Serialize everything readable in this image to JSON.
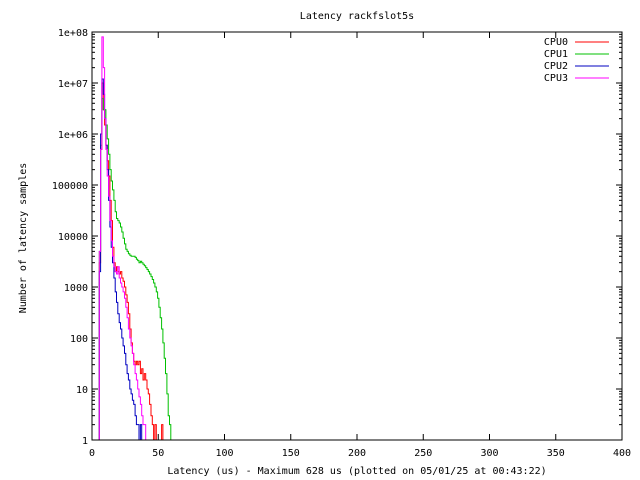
{
  "chart_data": {
    "type": "line",
    "title": "Latency rackfslot5s",
    "xlabel": "Latency (us) - Maximum 628 us (plotted on 05/01/25 at 00:43:22)",
    "ylabel": "Number of latency samples",
    "xlim": [
      0,
      400
    ],
    "ylim": [
      1,
      100000000
    ],
    "yscale": "log",
    "grid": false,
    "legend_position": "top-right",
    "x_ticks": [
      0,
      50,
      100,
      150,
      200,
      250,
      300,
      350,
      400
    ],
    "y_ticks": [
      {
        "value": 1,
        "label": "1"
      },
      {
        "value": 10,
        "label": "10"
      },
      {
        "value": 100,
        "label": "100"
      },
      {
        "value": 1000,
        "label": "1000"
      },
      {
        "value": 10000,
        "label": "10000"
      },
      {
        "value": 100000,
        "label": "100000"
      },
      {
        "value": 1000000,
        "label": "1e+06"
      },
      {
        "value": 10000000,
        "label": "1e+07"
      },
      {
        "value": 100000000,
        "label": "1e+08"
      }
    ],
    "series": [
      {
        "name": "CPU0",
        "color": "#ff0000",
        "points": [
          [
            5,
            1
          ],
          [
            6,
            3000
          ],
          [
            7,
            500000
          ],
          [
            8,
            10000000
          ],
          [
            9,
            3000000
          ],
          [
            10,
            1500000
          ],
          [
            11,
            600000
          ],
          [
            12,
            300000
          ],
          [
            13,
            150000
          ],
          [
            14,
            50000
          ],
          [
            15,
            20000
          ],
          [
            16,
            6000
          ],
          [
            17,
            3000
          ],
          [
            18,
            2000
          ],
          [
            19,
            2500
          ],
          [
            20,
            2000
          ],
          [
            21,
            1800
          ],
          [
            22,
            2000
          ],
          [
            23,
            1500
          ],
          [
            24,
            1300
          ],
          [
            25,
            1000
          ],
          [
            26,
            700
          ],
          [
            27,
            500
          ],
          [
            28,
            300
          ],
          [
            29,
            150
          ],
          [
            30,
            80
          ],
          [
            31,
            50
          ],
          [
            32,
            35
          ],
          [
            33,
            30
          ],
          [
            34,
            35
          ],
          [
            35,
            30
          ],
          [
            36,
            35
          ],
          [
            37,
            20
          ],
          [
            38,
            25
          ],
          [
            39,
            15
          ],
          [
            40,
            20
          ],
          [
            41,
            15
          ],
          [
            42,
            10
          ],
          [
            43,
            8
          ],
          [
            44,
            5
          ],
          [
            45,
            3
          ],
          [
            46,
            2
          ],
          [
            47,
            1
          ],
          [
            48,
            2
          ],
          [
            49,
            1
          ],
          [
            50,
            1
          ],
          [
            51,
            1
          ],
          [
            52,
            1
          ],
          [
            53,
            2
          ],
          [
            54,
            1
          ],
          [
            55,
            1
          ],
          [
            56,
            1
          ],
          [
            57,
            1
          ],
          [
            58,
            1
          ],
          [
            59,
            1
          ],
          [
            60,
            1
          ],
          [
            61,
            1
          ],
          [
            62,
            1
          ],
          [
            63,
            1
          ],
          [
            64,
            1
          ],
          [
            65,
            1
          ],
          [
            66,
            1
          ],
          [
            67,
            1
          ]
        ]
      },
      {
        "name": "CPU1",
        "color": "#00c000",
        "points": [
          [
            5,
            1
          ],
          [
            6,
            5000
          ],
          [
            7,
            600000
          ],
          [
            8,
            5000000
          ],
          [
            9,
            3000000
          ],
          [
            10,
            3000000
          ],
          [
            11,
            1500000
          ],
          [
            12,
            800000
          ],
          [
            13,
            400000
          ],
          [
            14,
            200000
          ],
          [
            15,
            120000
          ],
          [
            16,
            80000
          ],
          [
            17,
            50000
          ],
          [
            18,
            30000
          ],
          [
            19,
            22000
          ],
          [
            20,
            20000
          ],
          [
            21,
            18000
          ],
          [
            22,
            15000
          ],
          [
            23,
            12000
          ],
          [
            24,
            9000
          ],
          [
            25,
            7000
          ],
          [
            26,
            5500
          ],
          [
            27,
            5000
          ],
          [
            28,
            4500
          ],
          [
            29,
            4200
          ],
          [
            30,
            4000
          ],
          [
            31,
            4000
          ],
          [
            32,
            4000
          ],
          [
            33,
            3800
          ],
          [
            34,
            3500
          ],
          [
            35,
            3300
          ],
          [
            36,
            3000
          ],
          [
            37,
            3200
          ],
          [
            38,
            3000
          ],
          [
            39,
            2800
          ],
          [
            40,
            2600
          ],
          [
            41,
            2400
          ],
          [
            42,
            2200
          ],
          [
            43,
            2000
          ],
          [
            44,
            1800
          ],
          [
            45,
            1600
          ],
          [
            46,
            1400
          ],
          [
            47,
            1200
          ],
          [
            48,
            1000
          ],
          [
            49,
            800
          ],
          [
            50,
            600
          ],
          [
            51,
            400
          ],
          [
            52,
            250
          ],
          [
            53,
            150
          ],
          [
            54,
            80
          ],
          [
            55,
            40
          ],
          [
            56,
            20
          ],
          [
            57,
            8
          ],
          [
            58,
            3
          ],
          [
            59,
            2
          ],
          [
            60,
            1
          ]
        ]
      },
      {
        "name": "CPU2",
        "color": "#0000c0",
        "points": [
          [
            5,
            1
          ],
          [
            6,
            2000
          ],
          [
            7,
            1000000
          ],
          [
            8,
            12000000
          ],
          [
            9,
            6000000
          ],
          [
            10,
            2000000
          ],
          [
            11,
            600000
          ],
          [
            12,
            200000
          ],
          [
            13,
            50000
          ],
          [
            14,
            15000
          ],
          [
            15,
            6000
          ],
          [
            16,
            3000
          ],
          [
            17,
            1500
          ],
          [
            18,
            800
          ],
          [
            19,
            500
          ],
          [
            20,
            300
          ],
          [
            21,
            200
          ],
          [
            22,
            150
          ],
          [
            23,
            100
          ],
          [
            24,
            70
          ],
          [
            25,
            50
          ],
          [
            26,
            30
          ],
          [
            27,
            20
          ],
          [
            28,
            15
          ],
          [
            29,
            10
          ],
          [
            30,
            8
          ],
          [
            31,
            6
          ],
          [
            32,
            5
          ],
          [
            33,
            3
          ],
          [
            34,
            2
          ],
          [
            35,
            2
          ],
          [
            36,
            1
          ],
          [
            37,
            2
          ],
          [
            38,
            1
          ],
          [
            39,
            1
          ],
          [
            40,
            1
          ]
        ]
      },
      {
        "name": "CPU3",
        "color": "#ff00ff",
        "points": [
          [
            5,
            1
          ],
          [
            6,
            5000
          ],
          [
            7,
            500000
          ],
          [
            8,
            80000000
          ],
          [
            9,
            20000000
          ],
          [
            10,
            2000000
          ],
          [
            11,
            500000
          ],
          [
            12,
            150000
          ],
          [
            13,
            60000
          ],
          [
            14,
            20000
          ],
          [
            15,
            8000
          ],
          [
            16,
            4000
          ],
          [
            17,
            2500
          ],
          [
            18,
            2000
          ],
          [
            19,
            1800
          ],
          [
            20,
            2500
          ],
          [
            21,
            1500
          ],
          [
            22,
            1200
          ],
          [
            23,
            1000
          ],
          [
            24,
            800
          ],
          [
            25,
            600
          ],
          [
            26,
            400
          ],
          [
            27,
            250
          ],
          [
            28,
            150
          ],
          [
            29,
            100
          ],
          [
            30,
            70
          ],
          [
            31,
            50
          ],
          [
            32,
            30
          ],
          [
            33,
            20
          ],
          [
            34,
            15
          ],
          [
            35,
            10
          ],
          [
            36,
            7
          ],
          [
            37,
            5
          ],
          [
            38,
            3
          ],
          [
            39,
            2
          ],
          [
            40,
            2
          ],
          [
            41,
            1
          ],
          [
            42,
            1
          ],
          [
            43,
            1
          ],
          [
            44,
            1
          ],
          [
            45,
            1
          ],
          [
            46,
            1
          ],
          [
            47,
            1
          ],
          [
            48,
            1
          ],
          [
            49,
            1
          ],
          [
            50,
            1
          ],
          [
            386,
            1
          ],
          [
            387,
            1
          ],
          [
            392,
            1
          ],
          [
            393,
            1
          ]
        ]
      }
    ]
  }
}
